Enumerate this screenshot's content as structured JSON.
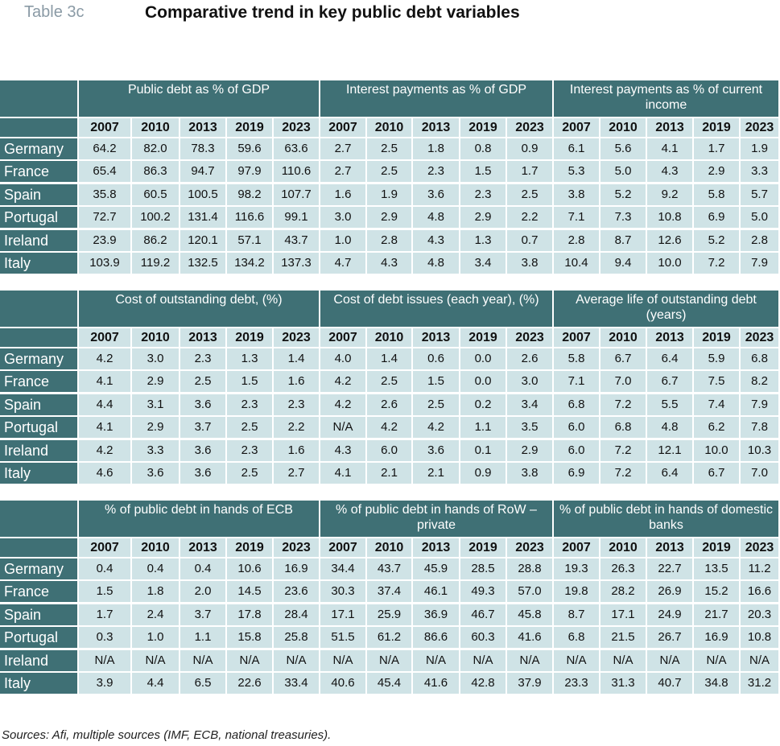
{
  "label": "Table 3c",
  "title": "Comparative trend in key public debt variables",
  "years": [
    "2007",
    "2010",
    "2013",
    "2019",
    "2023"
  ],
  "sections": [
    {
      "groups": [
        {
          "title": "Public debt as % of GDP",
          "rows": [
            [
              "64.2",
              "82.0",
              "78.3",
              "59.6",
              "63.6"
            ],
            [
              "65.4",
              "86.3",
              "94.7",
              "97.9",
              "110.6"
            ],
            [
              "35.8",
              "60.5",
              "100.5",
              "98.2",
              "107.7"
            ],
            [
              "72.7",
              "100.2",
              "131.4",
              "116.6",
              "99.1"
            ],
            [
              "23.9",
              "86.2",
              "120.1",
              "57.1",
              "43.7"
            ],
            [
              "103.9",
              "119.2",
              "132.5",
              "134.2",
              "137.3"
            ]
          ]
        },
        {
          "title": "Interest payments as % of GDP",
          "rows": [
            [
              "2.7",
              "2.5",
              "1.8",
              "0.8",
              "0.9"
            ],
            [
              "2.7",
              "2.5",
              "2.3",
              "1.5",
              "1.7"
            ],
            [
              "1.6",
              "1.9",
              "3.6",
              "2.3",
              "2.5"
            ],
            [
              "3.0",
              "2.9",
              "4.8",
              "2.9",
              "2.2"
            ],
            [
              "1.0",
              "2.8",
              "4.3",
              "1.3",
              "0.7"
            ],
            [
              "4.7",
              "4.3",
              "4.8",
              "3.4",
              "3.8"
            ]
          ]
        },
        {
          "title": "Interest payments as % of current income",
          "rows": [
            [
              "6.1",
              "5.6",
              "4.1",
              "1.7",
              "1.9"
            ],
            [
              "5.3",
              "5.0",
              "4.3",
              "2.9",
              "3.3"
            ],
            [
              "3.8",
              "5.2",
              "9.2",
              "5.8",
              "5.7"
            ],
            [
              "7.1",
              "7.3",
              "10.8",
              "6.9",
              "5.0"
            ],
            [
              "2.8",
              "8.7",
              "12.6",
              "5.2",
              "2.8"
            ],
            [
              "10.4",
              "9.4",
              "10.0",
              "7.2",
              "7.9"
            ]
          ]
        }
      ]
    },
    {
      "groups": [
        {
          "title": "Cost of outstanding debt, (%)",
          "rows": [
            [
              "4.2",
              "3.0",
              "2.3",
              "1.3",
              "1.4"
            ],
            [
              "4.1",
              "2.9",
              "2.5",
              "1.5",
              "1.6"
            ],
            [
              "4.4",
              "3.1",
              "3.6",
              "2.3",
              "2.3"
            ],
            [
              "4.1",
              "2.9",
              "3.7",
              "2.5",
              "2.2"
            ],
            [
              "4.2",
              "3.3",
              "3.6",
              "2.3",
              "1.6"
            ],
            [
              "4.6",
              "3.6",
              "3.6",
              "2.5",
              "2.7"
            ]
          ]
        },
        {
          "title": "Cost of debt issues (each year), (%)",
          "rows": [
            [
              "4.0",
              "1.4",
              "0.6",
              "0.0",
              "2.6"
            ],
            [
              "4.2",
              "2.5",
              "1.5",
              "0.0",
              "3.0"
            ],
            [
              "4.2",
              "2.6",
              "2.5",
              "0.2",
              "3.4"
            ],
            [
              "N/A",
              "4.2",
              "4.2",
              "1.1",
              "3.5"
            ],
            [
              "4.3",
              "6.0",
              "3.6",
              "0.1",
              "2.9"
            ],
            [
              "4.1",
              "2.1",
              "2.1",
              "0.9",
              "3.8"
            ]
          ]
        },
        {
          "title": "Average life of outstanding debt (years)",
          "rows": [
            [
              "5.8",
              "6.7",
              "6.4",
              "5.9",
              "6.8"
            ],
            [
              "7.1",
              "7.0",
              "6.7",
              "7.5",
              "8.2"
            ],
            [
              "6.8",
              "7.2",
              "5.5",
              "7.4",
              "7.9"
            ],
            [
              "6.0",
              "6.8",
              "4.8",
              "6.2",
              "7.8"
            ],
            [
              "6.0",
              "7.2",
              "12.1",
              "10.0",
              "10.3"
            ],
            [
              "6.9",
              "7.2",
              "6.4",
              "6.7",
              "7.0"
            ]
          ]
        }
      ]
    },
    {
      "groups": [
        {
          "title": "% of public debt in hands of ECB",
          "rows": [
            [
              "0.4",
              "0.4",
              "0.4",
              "10.6",
              "16.9"
            ],
            [
              "1.5",
              "1.8",
              "2.0",
              "14.5",
              "23.6"
            ],
            [
              "1.7",
              "2.4",
              "3.7",
              "17.8",
              "28.4"
            ],
            [
              "0.3",
              "1.0",
              "1.1",
              "15.8",
              "25.8"
            ],
            [
              "N/A",
              "N/A",
              "N/A",
              "N/A",
              "N/A"
            ],
            [
              "3.9",
              "4.4",
              "6.5",
              "22.6",
              "33.4"
            ]
          ]
        },
        {
          "title": "% of public debt in hands of RoW – private",
          "rows": [
            [
              "34.4",
              "43.7",
              "45.9",
              "28.5",
              "28.8"
            ],
            [
              "30.3",
              "37.4",
              "46.1",
              "49.3",
              "57.0"
            ],
            [
              "17.1",
              "25.9",
              "36.9",
              "46.7",
              "45.8"
            ],
            [
              "51.5",
              "61.2",
              "86.6",
              "60.3",
              "41.6"
            ],
            [
              "N/A",
              "N/A",
              "N/A",
              "N/A",
              "N/A"
            ],
            [
              "40.6",
              "45.4",
              "41.6",
              "42.8",
              "37.9"
            ]
          ]
        },
        {
          "title": "% of public debt in hands of domestic banks",
          "rows": [
            [
              "19.3",
              "26.3",
              "22.7",
              "13.5",
              "11.2"
            ],
            [
              "19.8",
              "28.2",
              "26.9",
              "15.2",
              "16.6"
            ],
            [
              "8.7",
              "17.1",
              "24.9",
              "21.7",
              "20.3"
            ],
            [
              "6.8",
              "21.5",
              "26.7",
              "16.9",
              "10.8"
            ],
            [
              "N/A",
              "N/A",
              "N/A",
              "N/A",
              "N/A"
            ],
            [
              "23.3",
              "31.3",
              "40.7",
              "34.8",
              "31.2"
            ]
          ]
        }
      ]
    }
  ],
  "countries": [
    "Germany",
    "France",
    "Spain",
    "Portugal",
    "Ireland",
    "Italy"
  ],
  "sources": "Sources: Afi, multiple sources (IMF, ECB, national treasuries)."
}
